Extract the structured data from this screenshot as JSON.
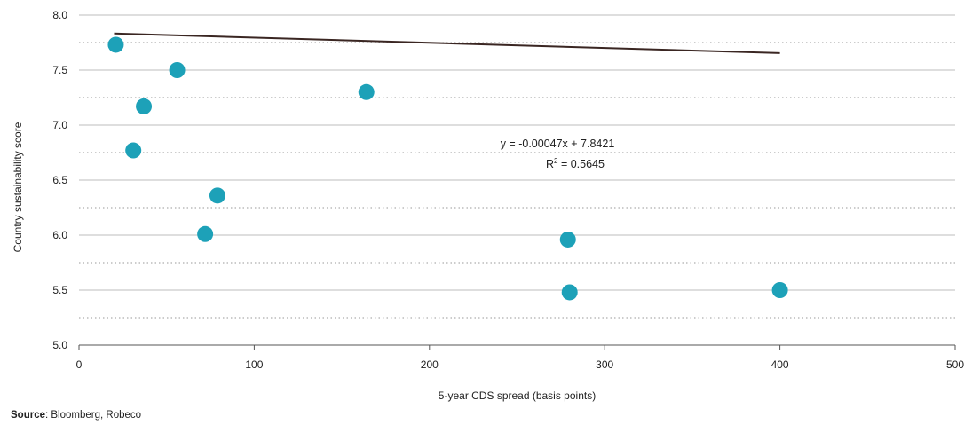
{
  "chart_data": {
    "type": "scatter",
    "xlabel": "5-year CDS spread (basis points)",
    "ylabel": "Country sustainability score",
    "xlim": [
      0,
      500
    ],
    "ylim": [
      5.0,
      8.0
    ],
    "x_ticks": [
      "0",
      "100",
      "200",
      "300",
      "400",
      "500"
    ],
    "y_ticks": [
      "5.0",
      "5.5",
      "6.0",
      "6.5",
      "7.0",
      "7.5",
      "8.0"
    ],
    "grid": "horizontal solid at major ticks, dotted at midpoints",
    "points": [
      {
        "x": 21,
        "y": 7.73
      },
      {
        "x": 56,
        "y": 7.5
      },
      {
        "x": 37,
        "y": 7.17
      },
      {
        "x": 31,
        "y": 6.77
      },
      {
        "x": 79,
        "y": 6.36
      },
      {
        "x": 72,
        "y": 6.01
      },
      {
        "x": 164,
        "y": 7.3
      },
      {
        "x": 279,
        "y": 5.96
      },
      {
        "x": 280,
        "y": 5.48
      },
      {
        "x": 400,
        "y": 5.5
      }
    ],
    "trendline": {
      "x_start": 20,
      "x_end": 400,
      "slope": -0.00047,
      "intercept": 7.8421
    },
    "annotation": {
      "equation": "y =  -0.00047x + 7.8421",
      "r2_prefix": "R",
      "r2_sup": "2",
      "r2_value": " = 0.5645"
    },
    "point_color": "#1da1b8",
    "line_color": "#3a2622"
  },
  "source": {
    "label": "Source",
    "text": ": Bloomberg, Robeco"
  }
}
